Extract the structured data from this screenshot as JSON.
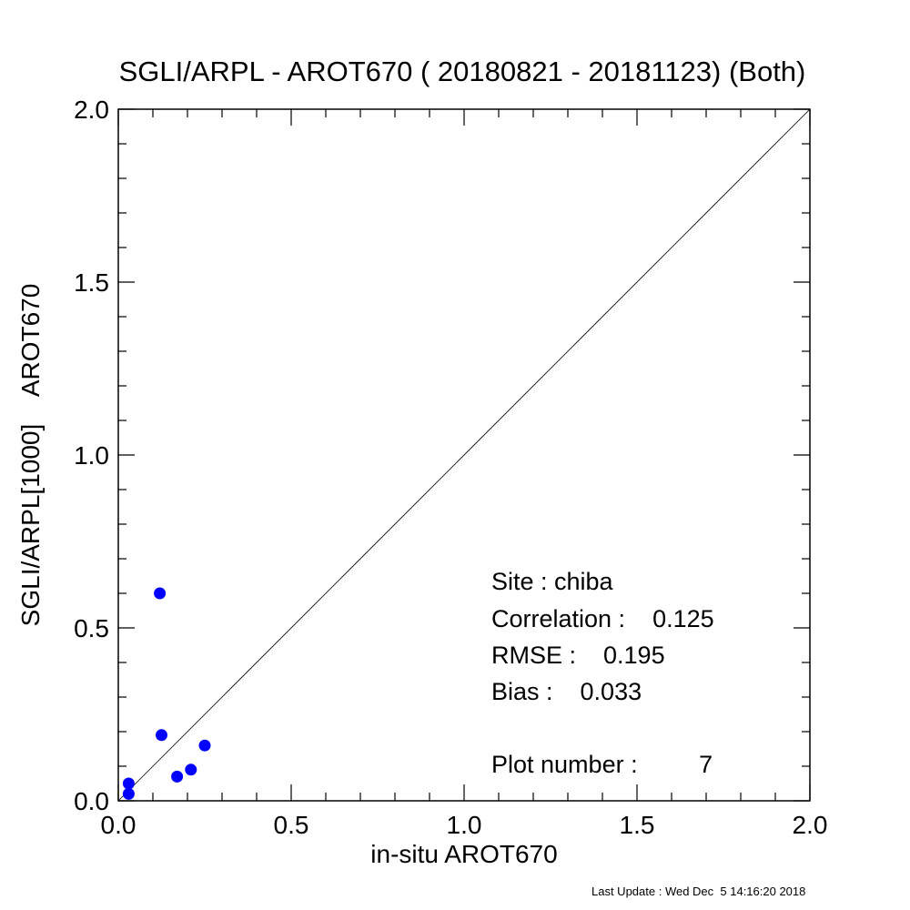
{
  "chart_data": {
    "type": "scatter",
    "title": "SGLI/ARPL - AROT670 ( 20180821 - 20181123) (Both)",
    "xlabel": "in-situ AROT670",
    "ylabel": "SGLI/ARPL[1000]    AROT670",
    "xlim": [
      0.0,
      2.0
    ],
    "ylim": [
      0.0,
      2.0
    ],
    "x_ticks": [
      "0.0",
      "0.5",
      "1.0",
      "1.5",
      "2.0"
    ],
    "y_ticks": [
      "0.0",
      "0.5",
      "1.0",
      "1.5",
      "2.0"
    ],
    "reference_line": "1:1",
    "marker_color": "#0000ff",
    "series": [
      {
        "x": [
          0.12,
          0.125,
          0.25,
          0.21,
          0.17,
          0.03,
          0.03
        ],
        "y": [
          0.6,
          0.19,
          0.16,
          0.09,
          0.07,
          0.05,
          0.02
        ]
      }
    ],
    "stats": {
      "site": "Site : chiba",
      "correlation": "Correlation :    0.125",
      "rmse": "RMSE :    0.195",
      "bias": "Bias :    0.033",
      "plot_number": "Plot number :         7"
    },
    "footer": "Last Update : Wed Dec  5 14:16:20 2018"
  }
}
